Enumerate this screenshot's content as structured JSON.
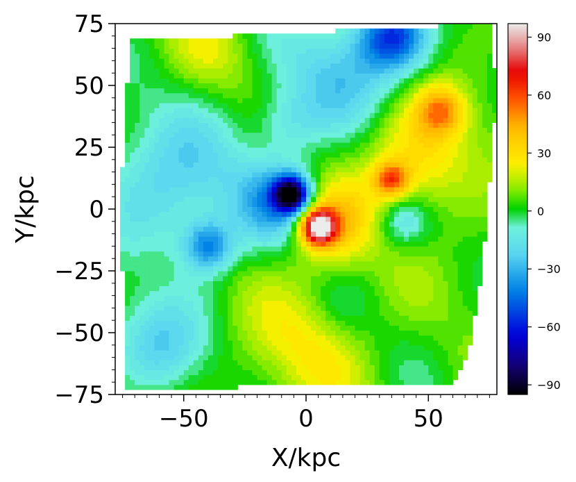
{
  "chart_data": {
    "type": "heatmap",
    "subtype": "filled-contour",
    "title": "",
    "xlabel": "X/kpc",
    "ylabel": "Y/kpc",
    "xlim": [
      -78,
      78
    ],
    "ylim": [
      -75,
      75
    ],
    "xticks": [
      -50,
      0,
      50
    ],
    "xtick_labels": [
      "−50",
      "0",
      "50"
    ],
    "yticks": [
      -75,
      -50,
      -25,
      0,
      25,
      50,
      75
    ],
    "ytick_labels": [
      "−75",
      "−50",
      "−25",
      "0",
      "25",
      "50",
      "75"
    ],
    "colorbar": {
      "colormap": "nipy_spectral-like",
      "range": [
        -95,
        97
      ],
      "ticks": [
        -90,
        -60,
        -30,
        0,
        30,
        60,
        90
      ],
      "tick_labels": [
        "−90",
        "−60",
        "−30",
        "0",
        "30",
        "60",
        "90"
      ],
      "placement": "right"
    },
    "covered_region": [
      [
        -72,
        68
      ],
      [
        75,
        75
      ],
      [
        78,
        48
      ],
      [
        72,
        -25
      ],
      [
        66,
        -60
      ],
      [
        60,
        -70
      ],
      [
        -73,
        -73
      ],
      [
        -76,
        0
      ]
    ],
    "background_value": 5,
    "features": [
      {
        "label": "central blue minimum",
        "x": -6,
        "y": 6,
        "value": -85,
        "spread": 5
      },
      {
        "label": "blue halo around minimum",
        "x": -10,
        "y": 3,
        "value": -32,
        "spread": 12
      },
      {
        "label": "central red maximum",
        "x": 5,
        "y": -7,
        "value": 90,
        "spread": 5
      },
      {
        "label": "red halo around maximum",
        "x": 8,
        "y": -6,
        "value": 40,
        "spread": 12
      },
      {
        "label": "north-east blue region",
        "x": 35,
        "y": 70,
        "value": -50,
        "spread": 10
      },
      {
        "label": "northern cyan band",
        "x": 15,
        "y": 55,
        "value": -22,
        "spread": 16
      },
      {
        "label": "eastern orange region",
        "x": 45,
        "y": 20,
        "value": 32,
        "spread": 16
      },
      {
        "label": "red spot east",
        "x": 35,
        "y": 12,
        "value": 50,
        "spread": 5
      },
      {
        "label": "red spot north-east",
        "x": 55,
        "y": 40,
        "value": 42,
        "spread": 7
      },
      {
        "label": "west cyan region",
        "x": -55,
        "y": 10,
        "value": -22,
        "spread": 22
      },
      {
        "label": "south-west cyan region",
        "x": -60,
        "y": -55,
        "value": -20,
        "spread": 14
      },
      {
        "label": "blue streak west",
        "x": -40,
        "y": -15,
        "value": -35,
        "spread": 7
      },
      {
        "label": "north-west yellow band",
        "x": -40,
        "y": 65,
        "value": 15,
        "spread": 12
      },
      {
        "label": "southern yellow region",
        "x": 0,
        "y": -55,
        "value": 22,
        "spread": 18
      },
      {
        "label": "green patch south",
        "x": 15,
        "y": -40,
        "value": 0,
        "spread": 8
      },
      {
        "label": "east cyan spot",
        "x": 40,
        "y": -5,
        "value": -18,
        "spread": 7
      },
      {
        "label": "north cyan spot",
        "x": -8,
        "y": 35,
        "value": -15,
        "spread": 10
      }
    ]
  }
}
